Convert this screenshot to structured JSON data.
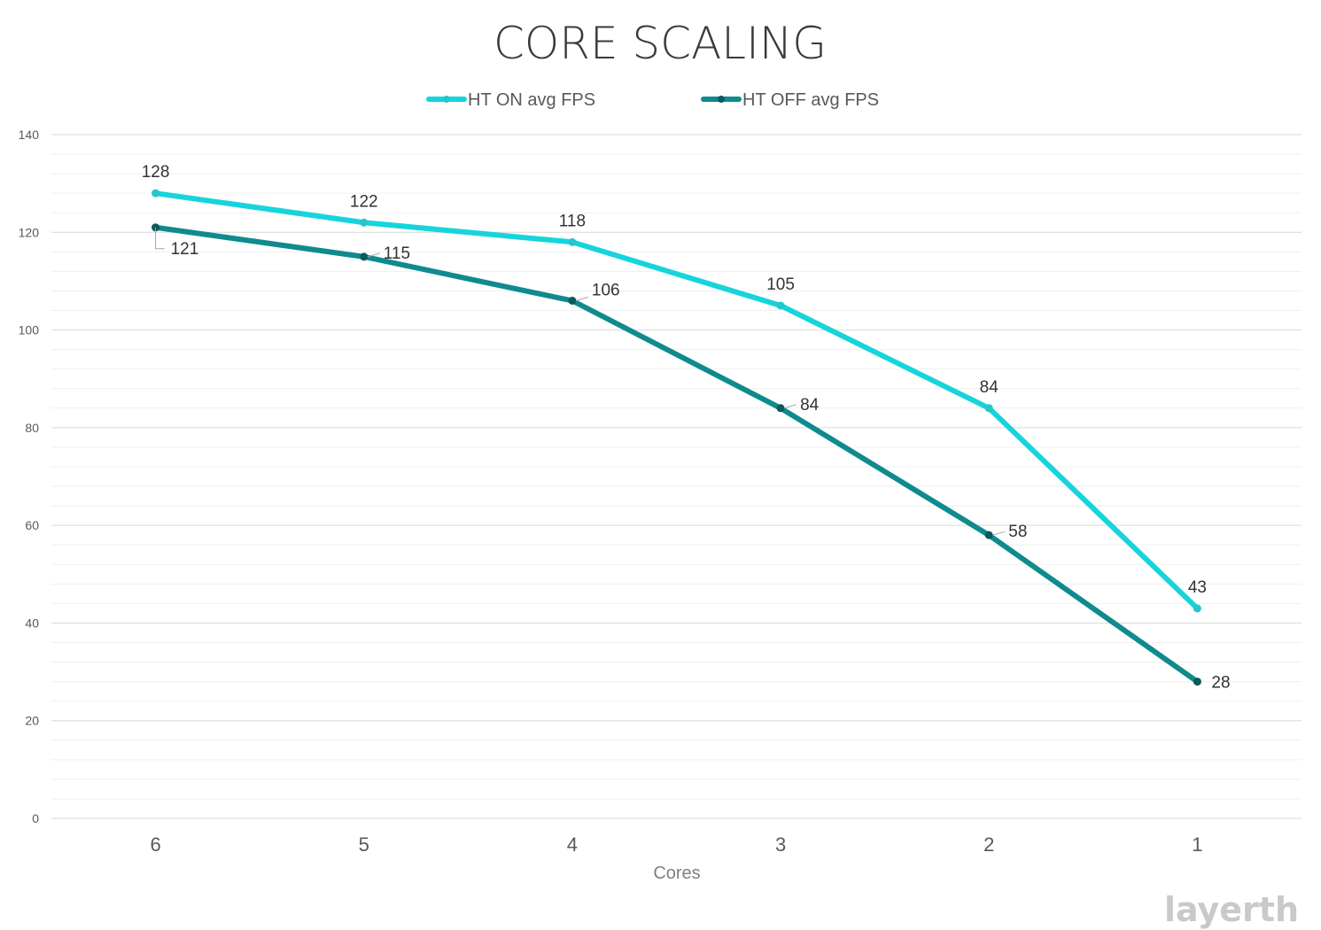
{
  "chart_data": {
    "type": "line",
    "title": "CORE SCALING",
    "xlabel": "Cores",
    "ylabel": "",
    "categories": [
      "6",
      "5",
      "4",
      "3",
      "2",
      "1"
    ],
    "ylim": [
      0,
      140
    ],
    "yticks": [
      "0",
      "20",
      "40",
      "60",
      "80",
      "100",
      "120",
      "140"
    ],
    "grid": true,
    "legend_position": "top-center",
    "series": [
      {
        "name": "HT ON avg FPS",
        "values": [
          128,
          122,
          118,
          105,
          84,
          43
        ],
        "color": "#17d4dc"
      },
      {
        "name": "HT OFF avg FPS",
        "values": [
          121,
          115,
          106,
          84,
          58,
          28
        ],
        "color": "#0f8b8e"
      }
    ]
  },
  "watermark": "layerth",
  "colors": {
    "gridline": "#d9d9d9",
    "minor_gridline": "#efefef",
    "marker_dark": "#0a5a5c"
  }
}
